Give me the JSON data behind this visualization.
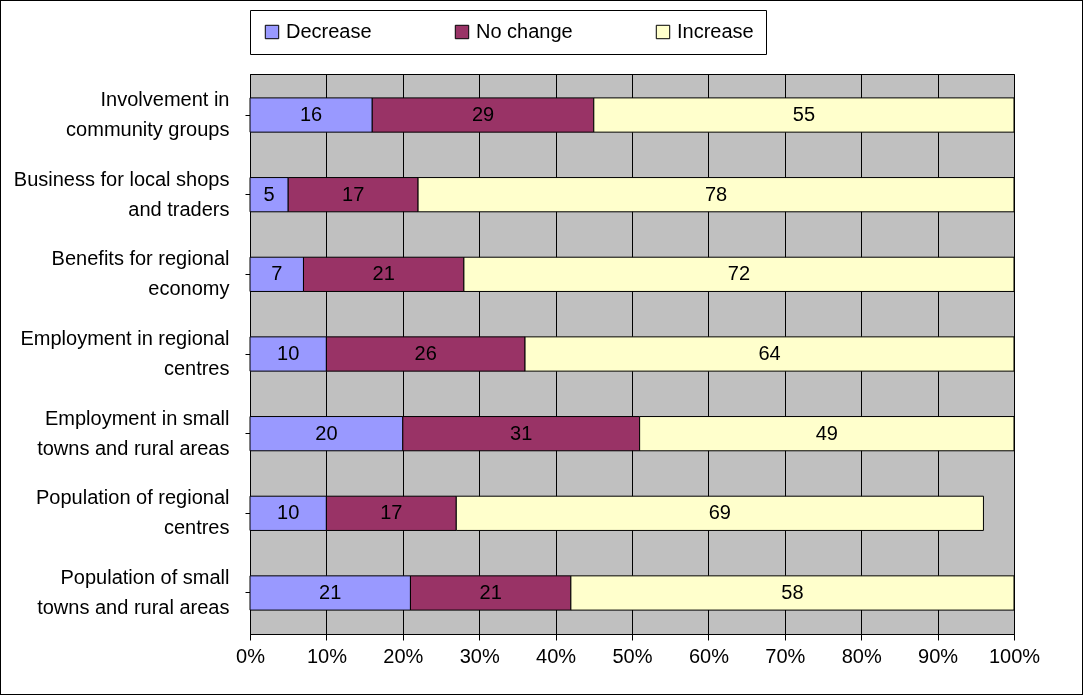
{
  "chart_data": {
    "type": "bar",
    "orientation": "horizontal",
    "stacked": true,
    "categories": [
      "Involvement in\ncommunity groups",
      "Business for local shops\nand traders",
      "Benefits for regional\neconomy",
      "Employment in regional\ncentres",
      "Employment in small\ntowns and rural areas",
      "Population of regional\ncentres",
      "Population of small\ntowns and rural areas"
    ],
    "series": [
      {
        "name": "Decrease",
        "color": "#9999ff",
        "values": [
          16,
          5,
          7,
          10,
          20,
          10,
          21
        ],
        "value_labels": [
          "16",
          "5",
          "7",
          "10",
          "20",
          "10",
          "21"
        ]
      },
      {
        "name": "No change",
        "color": "#993366",
        "values": [
          29,
          17,
          21,
          26,
          31,
          17,
          21
        ],
        "value_labels": [
          "29",
          "17",
          "21",
          "26",
          "31",
          "17",
          "21"
        ]
      },
      {
        "name": "Increase",
        "color": "#ffffcc",
        "values": [
          55,
          78,
          72,
          64,
          49,
          69,
          58
        ],
        "value_labels": [
          "55",
          "78",
          "72",
          "64",
          "49",
          "69",
          "58"
        ]
      }
    ],
    "xlim": [
      0,
      100
    ],
    "xticks": [
      {
        "value": 0,
        "label": "0%"
      },
      {
        "value": 10,
        "label": "10%"
      },
      {
        "value": 20,
        "label": "20%"
      },
      {
        "value": 30,
        "label": "30%"
      },
      {
        "value": 40,
        "label": "40%"
      },
      {
        "value": 50,
        "label": "50%"
      },
      {
        "value": 60,
        "label": "60%"
      },
      {
        "value": 70,
        "label": "70%"
      },
      {
        "value": 80,
        "label": "80%"
      },
      {
        "value": 90,
        "label": "90%"
      },
      {
        "value": 100,
        "label": "100%"
      }
    ],
    "grid": "x",
    "legend": "top"
  }
}
